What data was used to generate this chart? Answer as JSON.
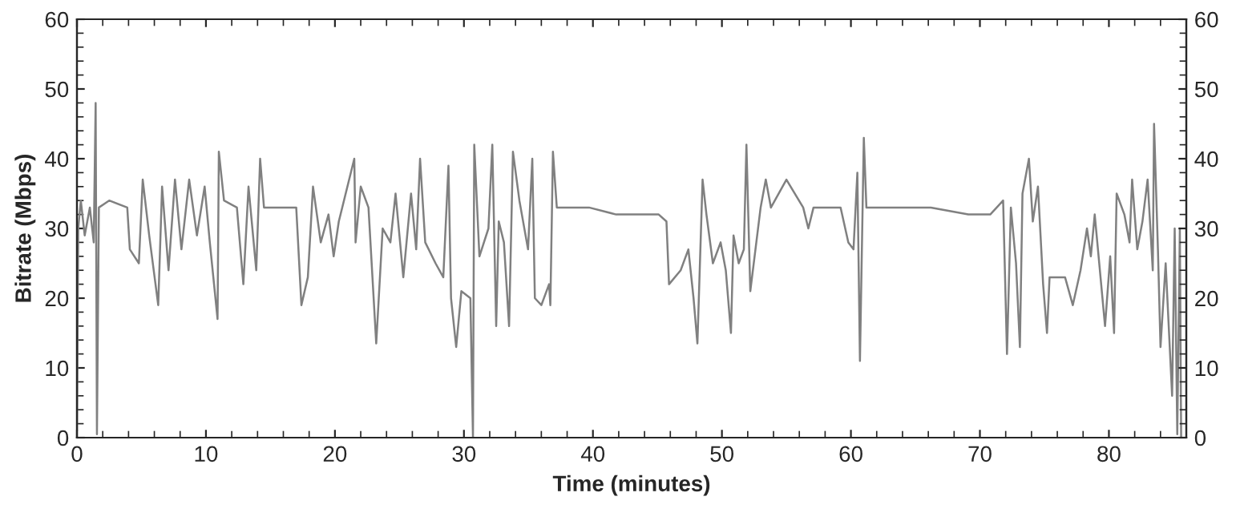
{
  "chart_data": {
    "type": "line",
    "xlabel": "Time (minutes)",
    "ylabel": "Bitrate (Mbps)",
    "xlim": [
      0,
      86
    ],
    "xticks": [
      0,
      10,
      20,
      30,
      40,
      50,
      60,
      70,
      80
    ],
    "ylim": [
      0,
      60
    ],
    "yticks": [
      0,
      10,
      20,
      30,
      40,
      50,
      60
    ],
    "y2lim": [
      0,
      60
    ],
    "y2ticks": [
      0,
      10,
      20,
      30,
      40,
      50,
      60
    ],
    "grid": false,
    "legend": false,
    "marker": "none",
    "line_style": "solid",
    "series": [
      {
        "color": "#808080",
        "x": [
          0.0,
          0.1,
          0.3,
          0.6,
          1.0,
          1.3,
          1.45,
          1.55,
          1.7,
          2.5,
          3.9,
          4.1,
          4.8,
          5.1,
          5.6,
          6.3,
          6.6,
          7.1,
          7.6,
          8.1,
          8.7,
          9.3,
          9.9,
          10.3,
          10.9,
          11.0,
          11.4,
          12.4,
          12.9,
          13.3,
          13.9,
          14.2,
          14.5,
          17.0,
          17.4,
          17.9,
          18.3,
          18.9,
          19.5,
          19.9,
          20.3,
          21.5,
          21.6,
          22.0,
          22.6,
          23.2,
          23.7,
          24.3,
          24.7,
          25.3,
          25.9,
          26.3,
          26.6,
          27.0,
          27.8,
          28.4,
          28.8,
          29.0,
          29.4,
          29.8,
          30.5,
          30.7,
          30.8,
          31.2,
          31.9,
          32.2,
          32.5,
          32.7,
          33.1,
          33.5,
          33.8,
          34.3,
          34.97,
          35.3,
          35.5,
          36.0,
          36.6,
          36.7,
          36.9,
          37.2,
          39.7,
          41.8,
          45.1,
          45.7,
          45.9,
          46.8,
          47.4,
          47.8,
          48.1,
          48.5,
          48.8,
          49.3,
          49.9,
          50.3,
          50.7,
          50.9,
          51.3,
          51.7,
          51.9,
          52.2,
          52.6,
          53.0,
          53.4,
          53.8,
          55.0,
          56.3,
          56.7,
          57.1,
          59.2,
          59.8,
          60.2,
          60.5,
          60.7,
          61.0,
          61.2,
          64.1,
          66.2,
          69.1,
          70.8,
          71.8,
          72.1,
          72.4,
          72.8,
          73.1,
          73.3,
          73.8,
          74.1,
          74.5,
          74.9,
          75.2,
          75.4,
          76.6,
          77.2,
          77.8,
          78.3,
          78.6,
          78.9,
          79.3,
          79.7,
          80.1,
          80.4,
          80.6,
          81.2,
          81.6,
          81.8,
          82.2,
          82.6,
          83.0,
          83.4,
          83.5,
          83.8,
          84.0,
          84.4,
          84.9,
          85.1,
          85.3,
          85.5,
          85.6
        ],
        "values": [
          1,
          30,
          34,
          29,
          33,
          28,
          48,
          0.5,
          33,
          34,
          33,
          27,
          25,
          37,
          29,
          19,
          36,
          24,
          37,
          27,
          37,
          29,
          36,
          28,
          17,
          41,
          34,
          33,
          22,
          36,
          24,
          40,
          33,
          33,
          19,
          23,
          36,
          28,
          32,
          26,
          31,
          40,
          28,
          36,
          33,
          13.5,
          30,
          28,
          35,
          23,
          35,
          27,
          40,
          28,
          25,
          23,
          39,
          20,
          13,
          21,
          20,
          0,
          42,
          26,
          30,
          42,
          16,
          31,
          28,
          16,
          41,
          34,
          27,
          40,
          20,
          19,
          22,
          19,
          41,
          33,
          33,
          32,
          32,
          31,
          22,
          24,
          27,
          20,
          13.5,
          37,
          32,
          25,
          28,
          24,
          15,
          29,
          25,
          27,
          42,
          21,
          27,
          33,
          37,
          33,
          37,
          33,
          30,
          33,
          33,
          28,
          27,
          38,
          11,
          43,
          33,
          33,
          33,
          32,
          32,
          34,
          12,
          33,
          25,
          13,
          35,
          40,
          31,
          36,
          22,
          15,
          23,
          23,
          19,
          24,
          30,
          26,
          32,
          24,
          16,
          26,
          15,
          35,
          32,
          28,
          37,
          27,
          31,
          37,
          24,
          45,
          27,
          13,
          25,
          6,
          30,
          0.5,
          30,
          0
        ]
      }
    ]
  }
}
